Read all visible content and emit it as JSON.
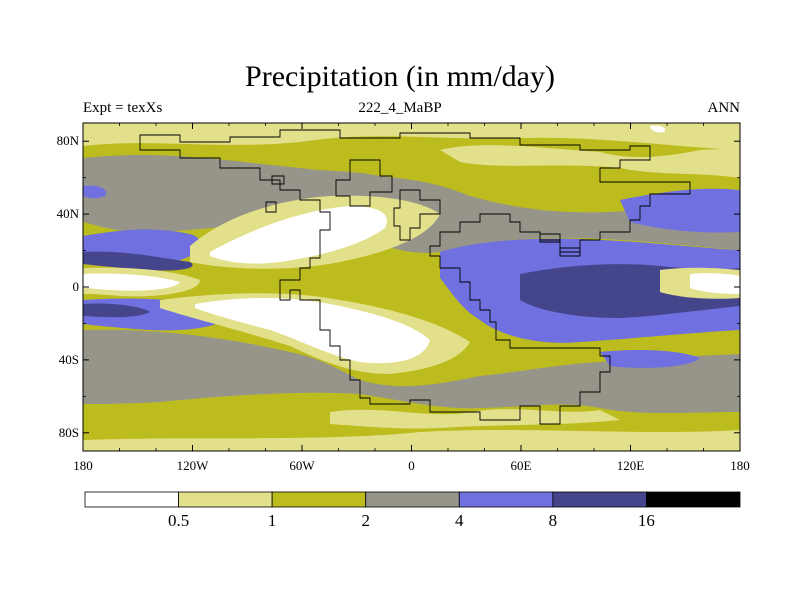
{
  "title": "Precipitation (in mm/day)",
  "left_string": "Expt = texXs",
  "center_string": "222_4_MaBP",
  "right_string": "ANN",
  "map": {
    "projection": "cylindrical-equidistant",
    "lon_range": [
      -180,
      180
    ],
    "lat_range": [
      -90,
      90
    ],
    "x_ticks": [
      {
        "lon": -180,
        "label": "180"
      },
      {
        "lon": -120,
        "label": "120W"
      },
      {
        "lon": -60,
        "label": "60W"
      },
      {
        "lon": 0,
        "label": "0"
      },
      {
        "lon": 60,
        "label": "60E"
      },
      {
        "lon": 120,
        "label": "120E"
      },
      {
        "lon": 180,
        "label": "180"
      }
    ],
    "y_ticks": [
      {
        "lat": 80,
        "label": "80N"
      },
      {
        "lat": 40,
        "label": "40N"
      },
      {
        "lat": 0,
        "label": "0"
      },
      {
        "lat": -40,
        "label": "40S"
      },
      {
        "lat": -80,
        "label": "80S"
      }
    ]
  },
  "colorbar": {
    "colors": [
      "#ffffff",
      "#e2e08a",
      "#bcbc1e",
      "#97958a",
      "#7070e0",
      "#45458c",
      "#000000"
    ],
    "labels": [
      "0.5",
      "1",
      "2",
      "4",
      "8",
      "16"
    ],
    "units": "mm/day"
  }
}
